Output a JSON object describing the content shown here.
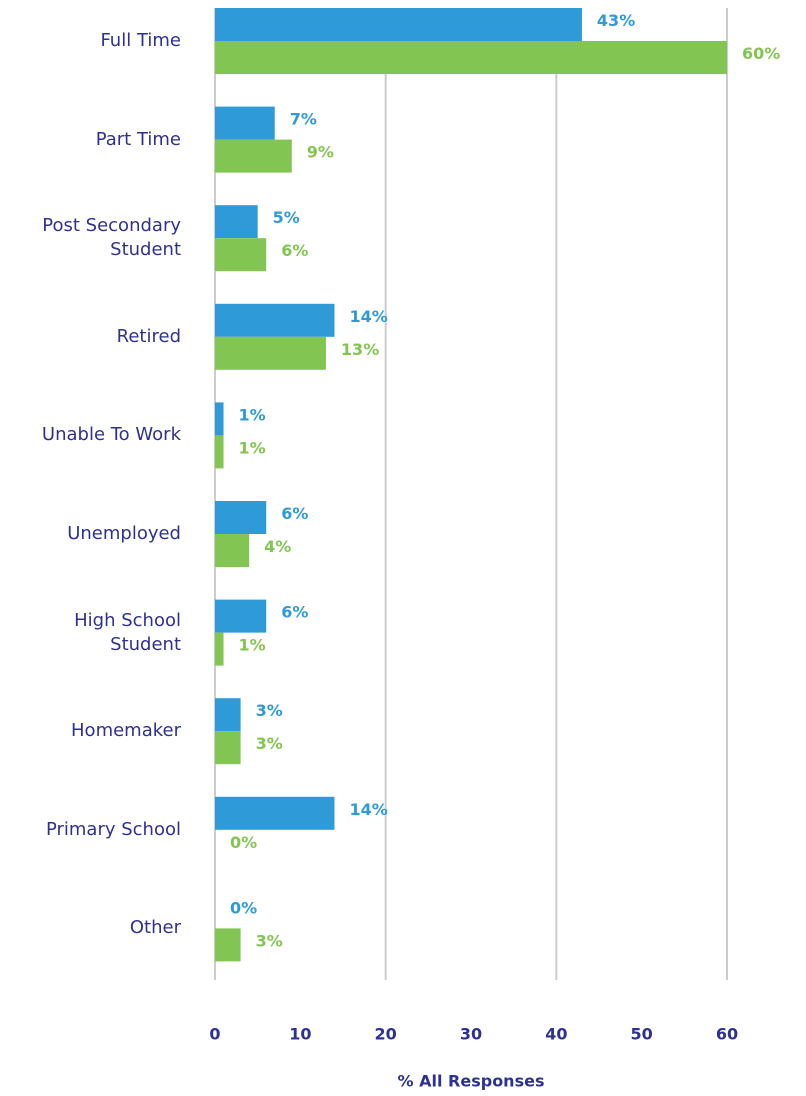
{
  "chart_data": {
    "type": "bar",
    "orientation": "horizontal",
    "categories": [
      "Full Time",
      "Part Time",
      "Post Secondary Student",
      "Retired",
      "Unable To Work",
      "Unemployed",
      "High School Student",
      "Homemaker",
      "Primary School",
      "Other"
    ],
    "series": [
      {
        "color": "#2e9ad8",
        "values": [
          43,
          7,
          5,
          14,
          1,
          6,
          6,
          3,
          14,
          0
        ],
        "value_labels": [
          "43%",
          "7%",
          "5%",
          "14%",
          "1%",
          "6%",
          "6%",
          "3%",
          "14%",
          "0%"
        ]
      },
      {
        "color": "#83c552",
        "values": [
          60,
          9,
          6,
          13,
          1,
          4,
          1,
          3,
          0,
          3
        ],
        "value_labels": [
          "60%",
          "9%",
          "6%",
          "13%",
          "1%",
          "4%",
          "1%",
          "3%",
          "0%",
          "3%"
        ]
      }
    ],
    "xlabel": "% All Responses",
    "xlim": [
      0,
      60
    ],
    "xticks": [
      0,
      10,
      20,
      30,
      40,
      50,
      60
    ],
    "gridlines": [
      20,
      40,
      60
    ],
    "grid": true
  }
}
